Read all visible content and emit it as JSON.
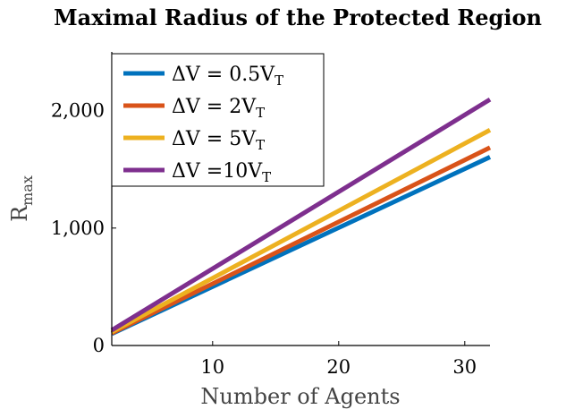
{
  "chart_data": {
    "type": "line",
    "title": "Maximal Radius of the Protected Region",
    "xlabel": "Number of Agents",
    "ylabel": {
      "base": "R",
      "sub": "max"
    },
    "xlim": [
      2,
      32
    ],
    "ylim": [
      0,
      2500
    ],
    "xticks": [
      10,
      20,
      30
    ],
    "xtick_labels": [
      "10",
      "20",
      "30"
    ],
    "yticks": [
      0,
      1000,
      2000
    ],
    "ytick_labels": [
      "0",
      "1,000",
      "2,000"
    ],
    "grid": false,
    "legend_position": "top-left",
    "series": [
      {
        "name": "ΔV = 0.5V",
        "name_sub": "T",
        "color": "#0072BD",
        "x": [
          2,
          32
        ],
        "y": [
          100,
          1605
        ]
      },
      {
        "name": "ΔV = 2V",
        "name_sub": "T",
        "color": "#D95319",
        "x": [
          2,
          32
        ],
        "y": [
          105,
          1685
        ]
      },
      {
        "name": "ΔV = 5V",
        "name_sub": "T",
        "color": "#EDB120",
        "x": [
          2,
          32
        ],
        "y": [
          115,
          1835
        ]
      },
      {
        "name": "ΔV =10V",
        "name_sub": "T",
        "color": "#7E2F8E",
        "x": [
          2,
          32
        ],
        "y": [
          130,
          2095
        ]
      }
    ]
  }
}
